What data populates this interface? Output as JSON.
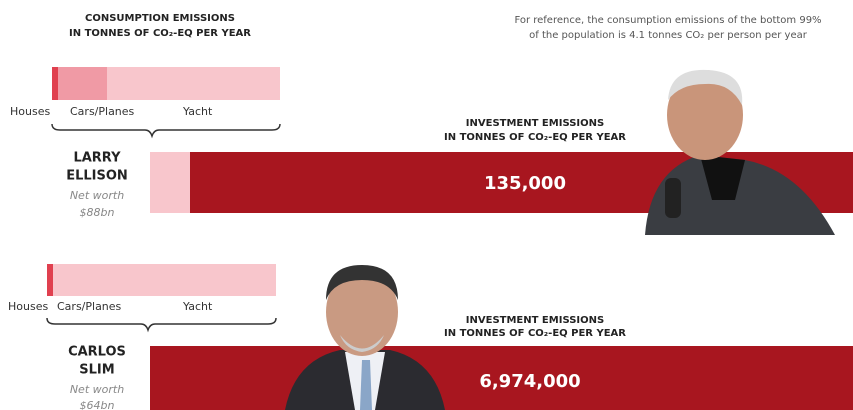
{
  "consumption_header": [
    "CONSUMPTION EMISSIONS",
    "IN TONNES OF CO₂-EQ PER YEAR"
  ],
  "reference_note": [
    "For reference, the consumption emissions of the bottom 99%",
    "of the population is 4.1 tonnes CO₂ per person per year"
  ],
  "people": [
    {
      "name": [
        "LARRY",
        "ELLISON"
      ],
      "net_worth": [
        "Net worth",
        "$88bn"
      ],
      "consumption_labels": [
        "Houses",
        "Cars/Planes",
        "Yacht"
      ],
      "investment_header": [
        "INVESTMENT EMISSIONS",
        "IN TONNES OF CO₂-EQ PER YEAR"
      ],
      "investment_value": "135,000"
    },
    {
      "name": [
        "CARLOS",
        "SLIM"
      ],
      "net_worth": [
        "Net worth",
        "$64bn"
      ],
      "consumption_labels": [
        "Houses",
        "Cars/Planes",
        "Yacht"
      ],
      "investment_header": [
        "INVESTMENT EMISSIONS",
        "IN TONNES OF CO₂-EQ PER YEAR"
      ],
      "investment_value": "6,974,000"
    }
  ]
}
